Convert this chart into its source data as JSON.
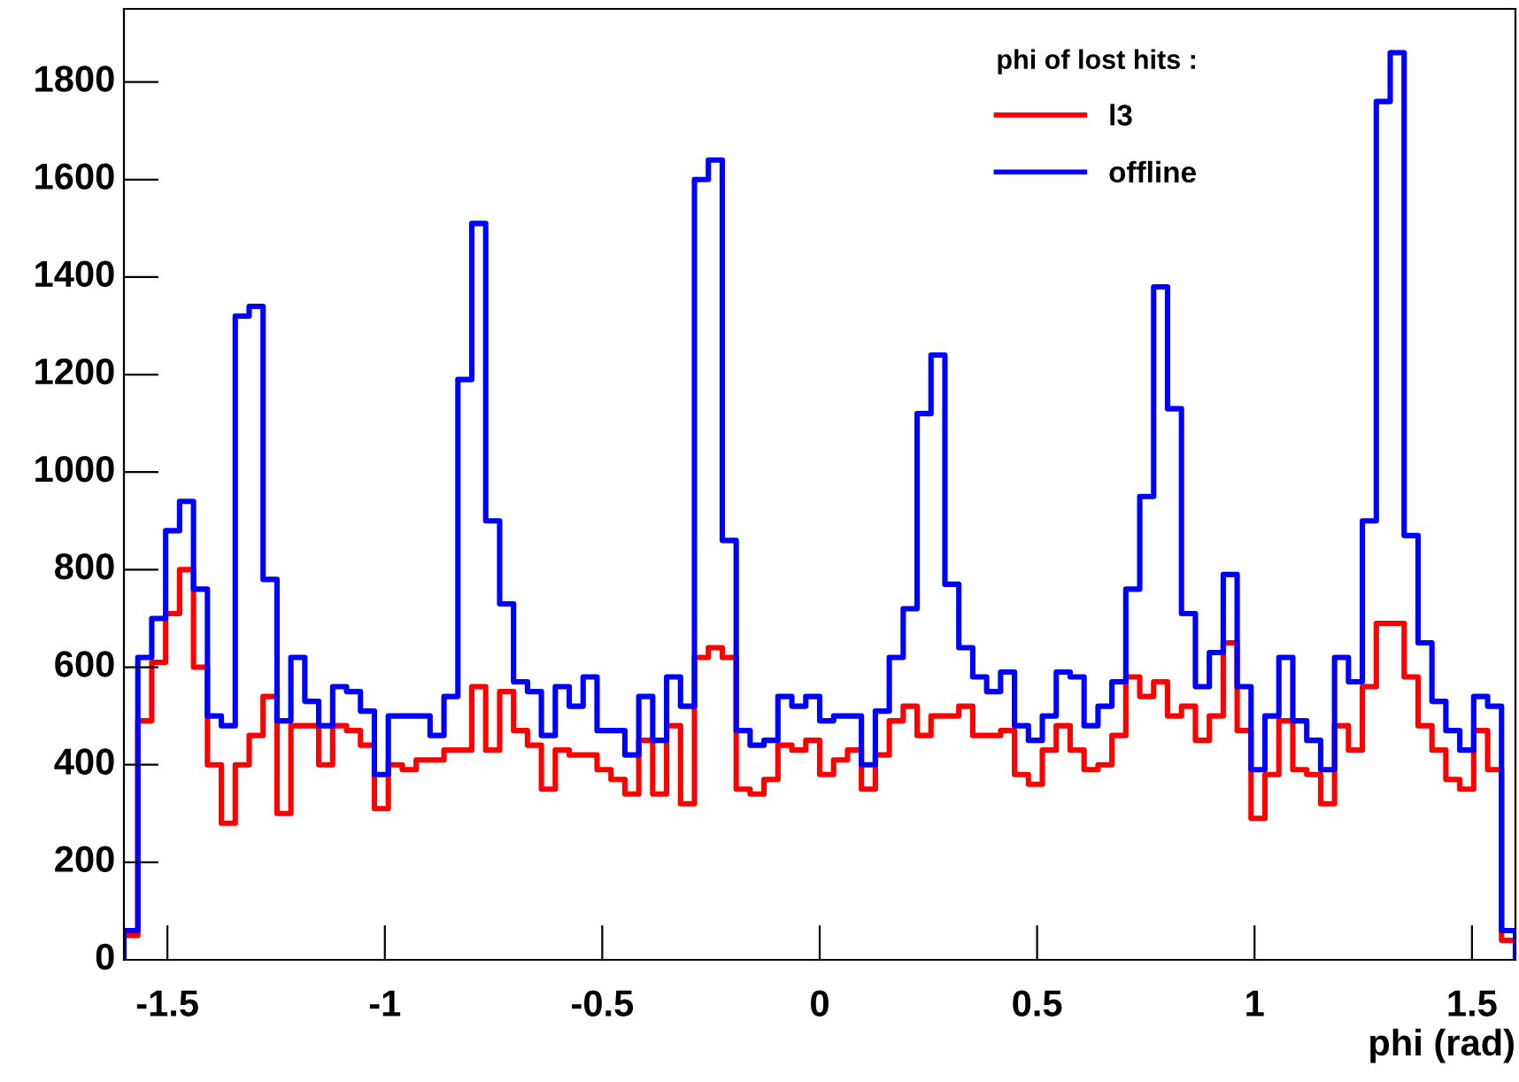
{
  "chart_data": {
    "type": "histogram",
    "xlabel": "phi (rad)",
    "legend_title": "phi of lost hits :",
    "bins": [
      -1.6,
      -1.568,
      -1.536,
      -1.504,
      -1.472,
      -1.44,
      -1.408,
      -1.376,
      -1.344,
      -1.312,
      -1.28,
      -1.248,
      -1.216,
      -1.184,
      -1.152,
      -1.12,
      -1.088,
      -1.056,
      -1.024,
      -0.992,
      -0.96,
      -0.928,
      -0.896,
      -0.864,
      -0.832,
      -0.8,
      -0.768,
      -0.736,
      -0.704,
      -0.672,
      -0.64,
      -0.608,
      -0.576,
      -0.544,
      -0.512,
      -0.48,
      -0.448,
      -0.416,
      -0.384,
      -0.352,
      -0.32,
      -0.288,
      -0.256,
      -0.224,
      -0.192,
      -0.16,
      -0.128,
      -0.096,
      -0.064,
      -0.032,
      0,
      0.032,
      0.064,
      0.096,
      0.128,
      0.16,
      0.192,
      0.224,
      0.256,
      0.288,
      0.32,
      0.352,
      0.384,
      0.416,
      0.448,
      0.48,
      0.512,
      0.544,
      0.576,
      0.608,
      0.64,
      0.672,
      0.704,
      0.736,
      0.768,
      0.8,
      0.832,
      0.864,
      0.896,
      0.928,
      0.96,
      0.992,
      1.024,
      1.056,
      1.088,
      1.12,
      1.152,
      1.184,
      1.216,
      1.248,
      1.28,
      1.312,
      1.344,
      1.376,
      1.408,
      1.44,
      1.472,
      1.504,
      1.536,
      1.568,
      1.6
    ],
    "series": [
      {
        "name": "l3",
        "color": "#ff0000",
        "values": [
          50,
          490,
          610,
          710,
          800,
          600,
          400,
          280,
          400,
          460,
          540,
          300,
          480,
          480,
          400,
          480,
          470,
          440,
          310,
          400,
          390,
          410,
          410,
          430,
          430,
          560,
          430,
          550,
          470,
          440,
          350,
          430,
          420,
          420,
          390,
          370,
          340,
          450,
          340,
          480,
          320,
          620,
          640,
          620,
          350,
          340,
          370,
          440,
          430,
          450,
          380,
          410,
          430,
          350,
          420,
          490,
          520,
          460,
          500,
          500,
          520,
          460,
          460,
          470,
          380,
          360,
          430,
          480,
          430,
          390,
          400,
          460,
          580,
          540,
          570,
          500,
          520,
          450,
          500,
          650,
          470,
          290,
          380,
          490,
          390,
          380,
          320,
          480,
          430,
          560,
          690,
          690,
          580,
          480,
          430,
          370,
          350,
          470,
          390,
          40
        ]
      },
      {
        "name": "offline",
        "color": "#0000ff",
        "values": [
          60,
          620,
          700,
          880,
          940,
          760,
          500,
          480,
          1320,
          1340,
          780,
          490,
          620,
          530,
          480,
          560,
          550,
          510,
          380,
          500,
          500,
          500,
          460,
          540,
          1190,
          1510,
          900,
          730,
          570,
          550,
          460,
          560,
          520,
          580,
          470,
          470,
          420,
          540,
          450,
          580,
          520,
          1600,
          1640,
          860,
          470,
          440,
          450,
          540,
          520,
          540,
          490,
          500,
          500,
          400,
          510,
          620,
          720,
          1120,
          1240,
          770,
          640,
          580,
          550,
          590,
          480,
          450,
          500,
          590,
          580,
          480,
          520,
          570,
          760,
          950,
          1380,
          1130,
          710,
          560,
          630,
          790,
          560,
          390,
          500,
          620,
          490,
          450,
          390,
          620,
          570,
          900,
          1760,
          1860,
          870,
          650,
          530,
          470,
          430,
          540,
          520,
          60
        ]
      }
    ],
    "xlim": [
      -1.6,
      1.6
    ],
    "xticks": [
      -1.5,
      -1,
      -0.5,
      0,
      0.5,
      1,
      1.5
    ],
    "ylim": [
      0,
      1950
    ],
    "yticks": [
      0,
      200,
      400,
      600,
      800,
      1000,
      1200,
      1400,
      1600,
      1800
    ],
    "grid": false,
    "legend": "top right"
  }
}
